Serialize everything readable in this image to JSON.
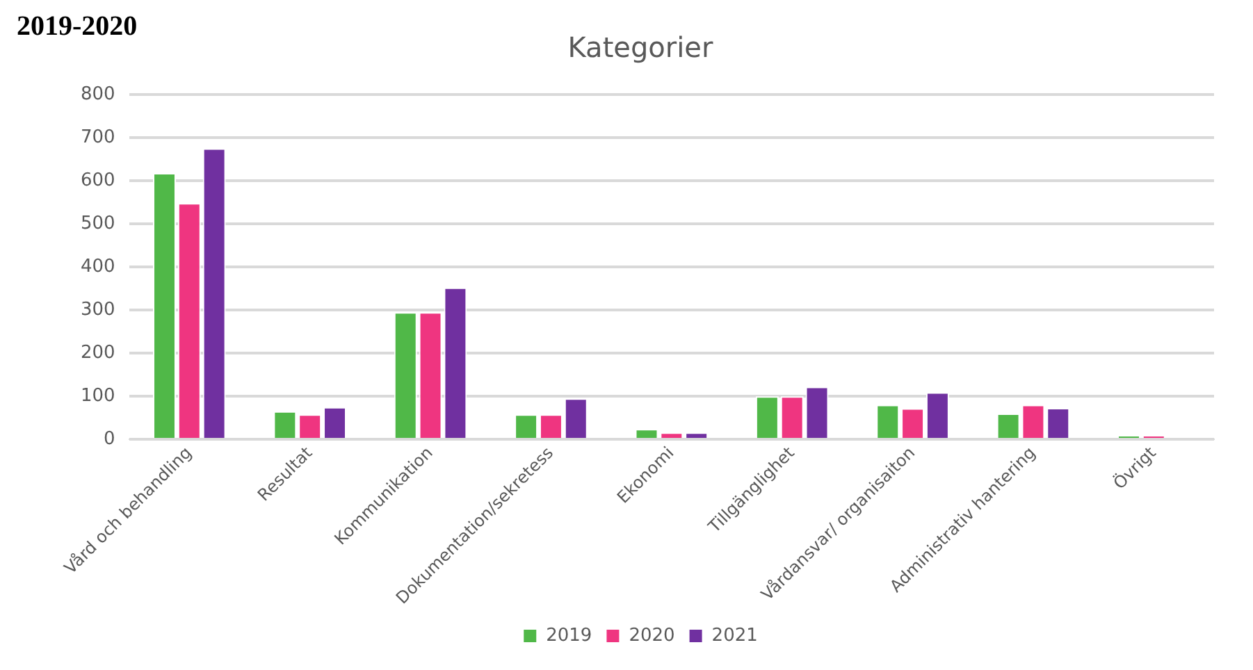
{
  "chart_data": {
    "type": "bar",
    "title": "Kategorier",
    "annotations": [
      "2019-2020"
    ],
    "categories": [
      "Vård och behandling",
      "Resultat",
      "Kommunikation",
      "Dokumentation/sekretess",
      "Ekonomi",
      "Tillgänglighet",
      "Vårdansvar/ organisaiton",
      "Administrativ hantering",
      "Övrigt"
    ],
    "series": [
      {
        "name": "2019",
        "color": "#50b848",
        "values": [
          618,
          65,
          295,
          58,
          24,
          100,
          80,
          60,
          10
        ]
      },
      {
        "name": "2020",
        "color": "#ef3580",
        "values": [
          548,
          58,
          295,
          58,
          16,
          100,
          72,
          80,
          10
        ]
      },
      {
        "name": "2021",
        "color": "#7030a0",
        "values": [
          675,
          75,
          352,
          95,
          16,
          122,
          109,
          73,
          null
        ]
      }
    ],
    "ylim": [
      0,
      800
    ],
    "yticks": [
      0,
      100,
      200,
      300,
      400,
      500,
      600,
      700,
      800
    ],
    "grid": "y",
    "legend": "bottom"
  }
}
